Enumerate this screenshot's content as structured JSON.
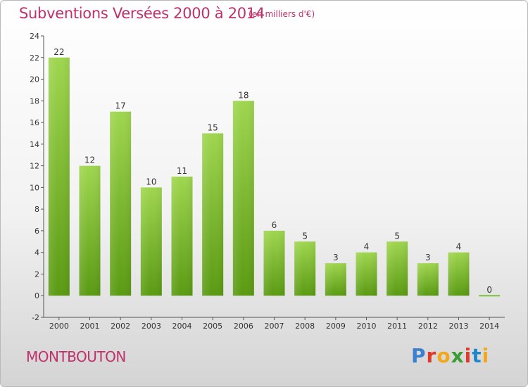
{
  "title": "Subventions Versées 2000 à 2014",
  "unit": "(en milliers d'€)",
  "commune": "MONTBOUTON",
  "logo": {
    "text": "Proxiti",
    "colors": [
      "#3a7fd0",
      "#e0392b",
      "#f3a81b",
      "#3c9c35",
      "#e0392b",
      "#1e88c8",
      "#f3a81b"
    ]
  },
  "colors": {
    "bar_top": "#9fd64f",
    "bar_bottom": "#5a9a12",
    "text": "#c0306a"
  },
  "chart_data": {
    "type": "bar",
    "title": "Subventions Versées 2000 à 2014",
    "subtitle": "(en milliers d'€)",
    "categories": [
      "2000",
      "2001",
      "2002",
      "2003",
      "2004",
      "2005",
      "2006",
      "2007",
      "2008",
      "2009",
      "2010",
      "2011",
      "2012",
      "2013",
      "2014"
    ],
    "values": [
      22,
      12,
      17,
      10,
      11,
      15,
      18,
      6,
      5,
      3,
      4,
      5,
      3,
      4,
      0
    ],
    "yticks": [
      "-2",
      "0",
      "2",
      "4",
      "6",
      "8",
      "10",
      "12",
      "14",
      "16",
      "18",
      "20",
      "22",
      "24"
    ],
    "ylim": [
      -2,
      24
    ],
    "grid": false,
    "legend": "none"
  }
}
